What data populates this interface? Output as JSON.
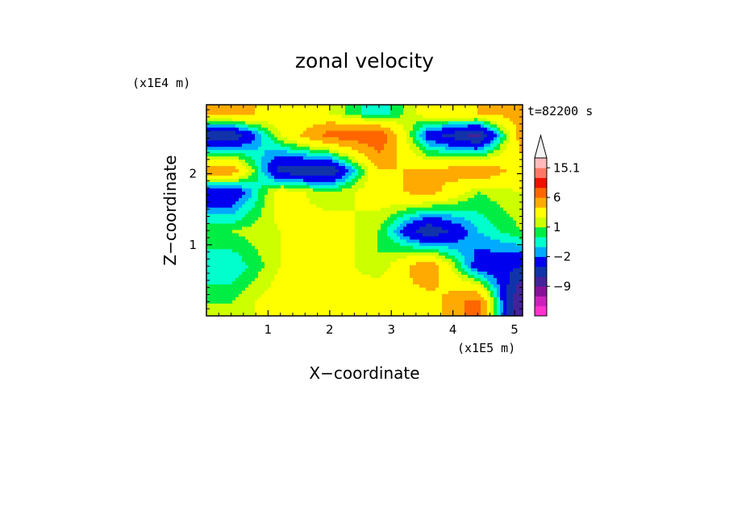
{
  "chart_data": {
    "type": "heatmap",
    "title": "zonal velocity",
    "xlabel": "X−coordinate",
    "ylabel": "Z−coordinate",
    "x_scale_label": "(x1E5 m)",
    "y_scale_label": "(x1E4 m)",
    "time_label": "t=82200 s",
    "xlim": [
      0,
      5.13
    ],
    "ylim": [
      0,
      2.97
    ],
    "x_ticks": [
      "1",
      "2",
      "3",
      "4",
      "5"
    ],
    "x_tick_values": [
      1,
      2,
      3,
      4,
      5
    ],
    "y_ticks": [
      "1",
      "2"
    ],
    "y_tick_values": [
      1,
      2
    ],
    "colorbar": {
      "labels": [
        "15.1",
        "6",
        "1",
        "−2",
        "−9"
      ],
      "label_values": [
        15.1,
        6,
        1,
        -2,
        -9
      ],
      "levels": [
        -15,
        -12,
        -9,
        -6,
        -4,
        -2,
        -1,
        0,
        1,
        2,
        4,
        6,
        9,
        12,
        15.1
      ],
      "colors": [
        "#ff33cc",
        "#cc22bb",
        "#881199",
        "#442299",
        "#1133aa",
        "#0000ee",
        "#00aaff",
        "#00ffcc",
        "#00ee44",
        "#ccff00",
        "#ffff00",
        "#ffaa00",
        "#ff6600",
        "#ee1100",
        "#ff7766",
        "#ffbbbb"
      ],
      "extend": "max"
    },
    "bands": [
      {
        "z": 2.85,
        "x_samples": [
          0.4,
          1.2,
          2.0,
          2.8,
          3.6,
          4.4,
          5.1
        ],
        "values": [
          5,
          3,
          2,
          -1,
          3,
          4,
          5
        ]
      },
      {
        "z": 2.55,
        "x_samples": [
          0.4,
          1.2,
          2.0,
          2.8,
          3.6,
          4.4,
          5.1
        ],
        "values": [
          -6,
          2,
          7,
          8,
          -3,
          -7,
          5
        ]
      },
      {
        "z": 2.05,
        "x_samples": [
          0.4,
          1.2,
          2.0,
          2.8,
          3.6,
          4.4,
          5.1
        ],
        "values": [
          6,
          -5,
          -6,
          4,
          4,
          6,
          3
        ]
      },
      {
        "z": 1.75,
        "x_samples": [
          0.4,
          1.2,
          2.0,
          2.8,
          3.6,
          4.4,
          5.1
        ],
        "values": [
          -4,
          3,
          1,
          3,
          5,
          1,
          2
        ]
      },
      {
        "z": 1.2,
        "x_samples": [
          0.4,
          1.2,
          2.0,
          2.8,
          3.6,
          4.4,
          5.1
        ],
        "values": [
          1,
          2,
          3,
          1,
          -6,
          -1,
          1
        ]
      },
      {
        "z": 0.7,
        "x_samples": [
          0.4,
          1.2,
          2.0,
          2.8,
          3.6,
          4.4,
          5.1
        ],
        "values": [
          -1,
          2,
          3,
          1,
          6,
          -3,
          -4
        ]
      },
      {
        "z": 0.2,
        "x_samples": [
          0.4,
          1.2,
          2.0,
          2.8,
          3.6,
          4.4,
          5.1
        ],
        "values": [
          1,
          3,
          2,
          4,
          3,
          7,
          -9
        ]
      }
    ]
  }
}
